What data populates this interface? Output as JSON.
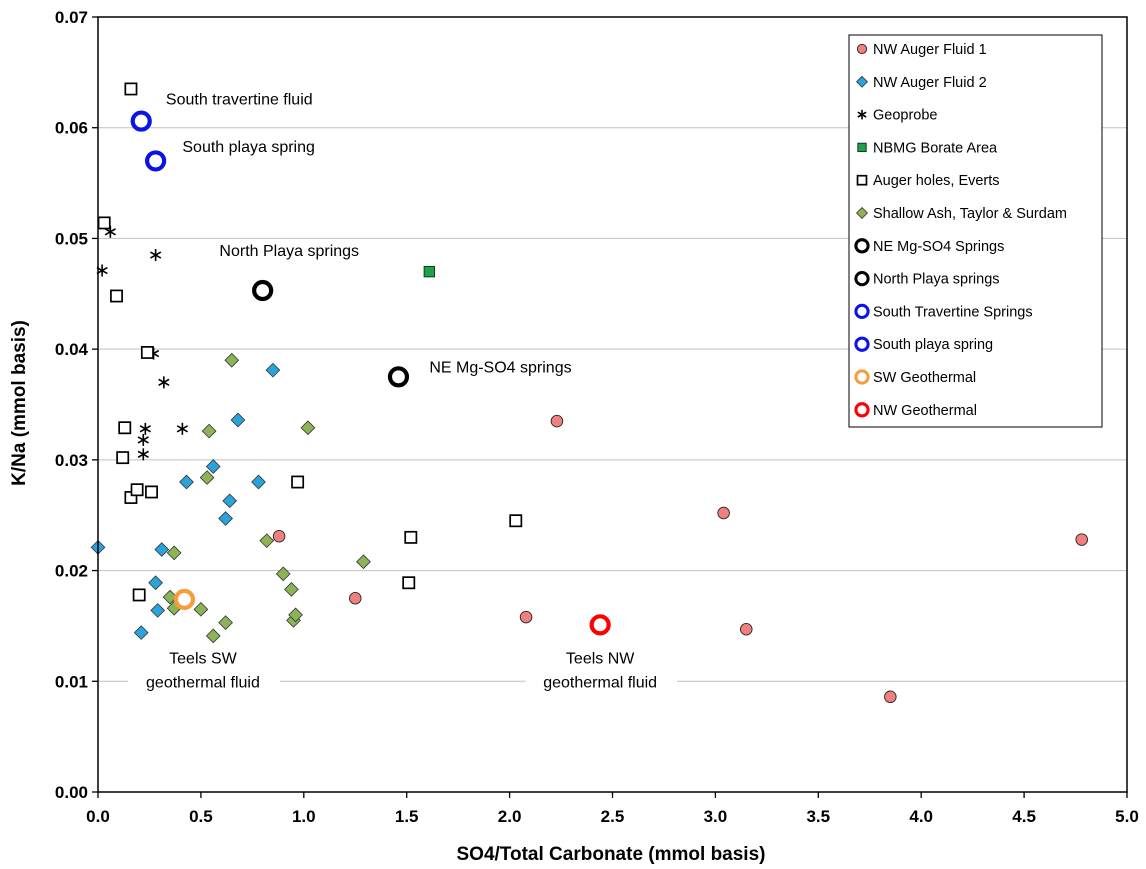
{
  "colors": {
    "nw_auger_1": "#f08080",
    "nw_auger_2": "#29a3d9",
    "nbmg": "#1fa14a",
    "shallow_ash": "#8db357",
    "blue_ring": "#0a14e6",
    "sw_geothermal": "#f79c3b",
    "nw_geothermal": "#ff0000",
    "grid": "#c0c0c0"
  },
  "chart_data": {
    "type": "scatter",
    "xlabel": "SO4/Total Carbonate (mmol basis)",
    "ylabel": "K/Na (mmol basis)",
    "xlim": [
      0,
      5
    ],
    "ylim": [
      0,
      0.07
    ],
    "x_ticks": [
      "0.0",
      "0.5",
      "1.0",
      "1.5",
      "2.0",
      "2.5",
      "3.0",
      "3.5",
      "4.0",
      "4.5",
      "5.0"
    ],
    "y_ticks": [
      "0.00",
      "0.01",
      "0.02",
      "0.03",
      "0.04",
      "0.05",
      "0.06",
      "0.07"
    ],
    "grid": "horizontal",
    "legend_position": "top-right",
    "series": [
      {
        "name": "NW Auger Fluid 1",
        "marker": "circle",
        "color": "#f08080",
        "points": [
          [
            0.88,
            0.0231
          ],
          [
            1.25,
            0.0175
          ],
          [
            2.08,
            0.0158
          ],
          [
            2.23,
            0.0335
          ],
          [
            3.04,
            0.0252
          ],
          [
            3.15,
            0.0147
          ],
          [
            3.85,
            0.0086
          ],
          [
            4.78,
            0.0228
          ]
        ]
      },
      {
        "name": "NW Auger Fluid 2",
        "marker": "diamond",
        "color": "#29a3d9",
        "points": [
          [
            0.0,
            0.0221
          ],
          [
            0.21,
            0.0144
          ],
          [
            0.28,
            0.0189
          ],
          [
            0.29,
            0.0164
          ],
          [
            0.31,
            0.0219
          ],
          [
            0.43,
            0.028
          ],
          [
            0.56,
            0.0294
          ],
          [
            0.62,
            0.0247
          ],
          [
            0.64,
            0.0263
          ],
          [
            0.68,
            0.0336
          ],
          [
            0.78,
            0.028
          ],
          [
            0.85,
            0.0381
          ]
        ]
      },
      {
        "name": "Geoprobe",
        "marker": "asterisk",
        "color": "#000000",
        "points": [
          [
            0.02,
            0.0471
          ],
          [
            0.06,
            0.0506
          ],
          [
            0.22,
            0.0305
          ],
          [
            0.22,
            0.0318
          ],
          [
            0.23,
            0.0328
          ],
          [
            0.27,
            0.0396
          ],
          [
            0.28,
            0.0485
          ],
          [
            0.32,
            0.037
          ],
          [
            0.41,
            0.0328
          ]
        ]
      },
      {
        "name": "NBMG Borate Area",
        "marker": "square",
        "color": "#1fa14a",
        "points": [
          [
            1.61,
            0.047
          ]
        ]
      },
      {
        "name": "Auger holes, Everts",
        "marker": "open-square",
        "color": "#000000",
        "points": [
          [
            0.03,
            0.0514
          ],
          [
            0.09,
            0.0448
          ],
          [
            0.12,
            0.0302
          ],
          [
            0.13,
            0.0329
          ],
          [
            0.16,
            0.0266
          ],
          [
            0.16,
            0.0635
          ],
          [
            0.19,
            0.0273
          ],
          [
            0.2,
            0.0178
          ],
          [
            0.24,
            0.0397
          ],
          [
            0.26,
            0.0271
          ],
          [
            0.97,
            0.028
          ],
          [
            1.51,
            0.0189
          ],
          [
            1.52,
            0.023
          ],
          [
            2.03,
            0.0245
          ]
        ]
      },
      {
        "name": "Shallow Ash, Taylor & Surdam",
        "marker": "diamond",
        "color": "#8db357",
        "points": [
          [
            0.35,
            0.0176
          ],
          [
            0.37,
            0.0166
          ],
          [
            0.37,
            0.0216
          ],
          [
            0.5,
            0.0165
          ],
          [
            0.53,
            0.0284
          ],
          [
            0.54,
            0.0326
          ],
          [
            0.56,
            0.0141
          ],
          [
            0.62,
            0.0153
          ],
          [
            0.65,
            0.039
          ],
          [
            0.82,
            0.0227
          ],
          [
            0.9,
            0.0197
          ],
          [
            0.94,
            0.0183
          ],
          [
            0.95,
            0.0155
          ],
          [
            0.96,
            0.016
          ],
          [
            1.02,
            0.0329
          ],
          [
            1.29,
            0.0208
          ]
        ]
      },
      {
        "name": "NE Mg-SO4 Springs",
        "marker": "ring",
        "color": "#000000",
        "points": [
          [
            1.46,
            0.0375
          ]
        ]
      },
      {
        "name": "North Playa springs",
        "marker": "ring",
        "color": "#000000",
        "points": [
          [
            0.8,
            0.0453
          ]
        ]
      },
      {
        "name": "South Travertine Springs",
        "marker": "ring",
        "color": "#0a14e6",
        "points": [
          [
            0.21,
            0.0606
          ]
        ]
      },
      {
        "name": "South playa spring",
        "marker": "ring",
        "color": "#0a14e6",
        "points": [
          [
            0.28,
            0.057
          ]
        ]
      },
      {
        "name": "SW Geothermal",
        "marker": "ring",
        "color": "#f79c3b",
        "points": [
          [
            0.42,
            0.0174
          ]
        ]
      },
      {
        "name": "NW Geothermal",
        "marker": "ring",
        "color": "#ff0000",
        "points": [
          [
            2.44,
            0.0151
          ]
        ]
      }
    ],
    "annotations": [
      {
        "lines": [
          "South travertine fluid"
        ],
        "x": 0.33,
        "y": 0.0621,
        "anchor": "start"
      },
      {
        "lines": [
          "South playa spring"
        ],
        "x": 0.41,
        "y": 0.0578,
        "anchor": "start"
      },
      {
        "lines": [
          "North Playa springs"
        ],
        "x": 0.59,
        "y": 0.0484,
        "anchor": "start"
      },
      {
        "lines": [
          "NE Mg-SO4 springs"
        ],
        "x": 1.61,
        "y": 0.0379,
        "anchor": "start"
      },
      {
        "lines": [
          "Teels SW",
          "geothermal fluid"
        ],
        "x": 0.51,
        "y": 0.0116,
        "anchor": "middle"
      },
      {
        "lines": [
          "Teels NW",
          "geothermal fluid"
        ],
        "x": 2.44,
        "y": 0.0116,
        "anchor": "middle"
      }
    ]
  }
}
